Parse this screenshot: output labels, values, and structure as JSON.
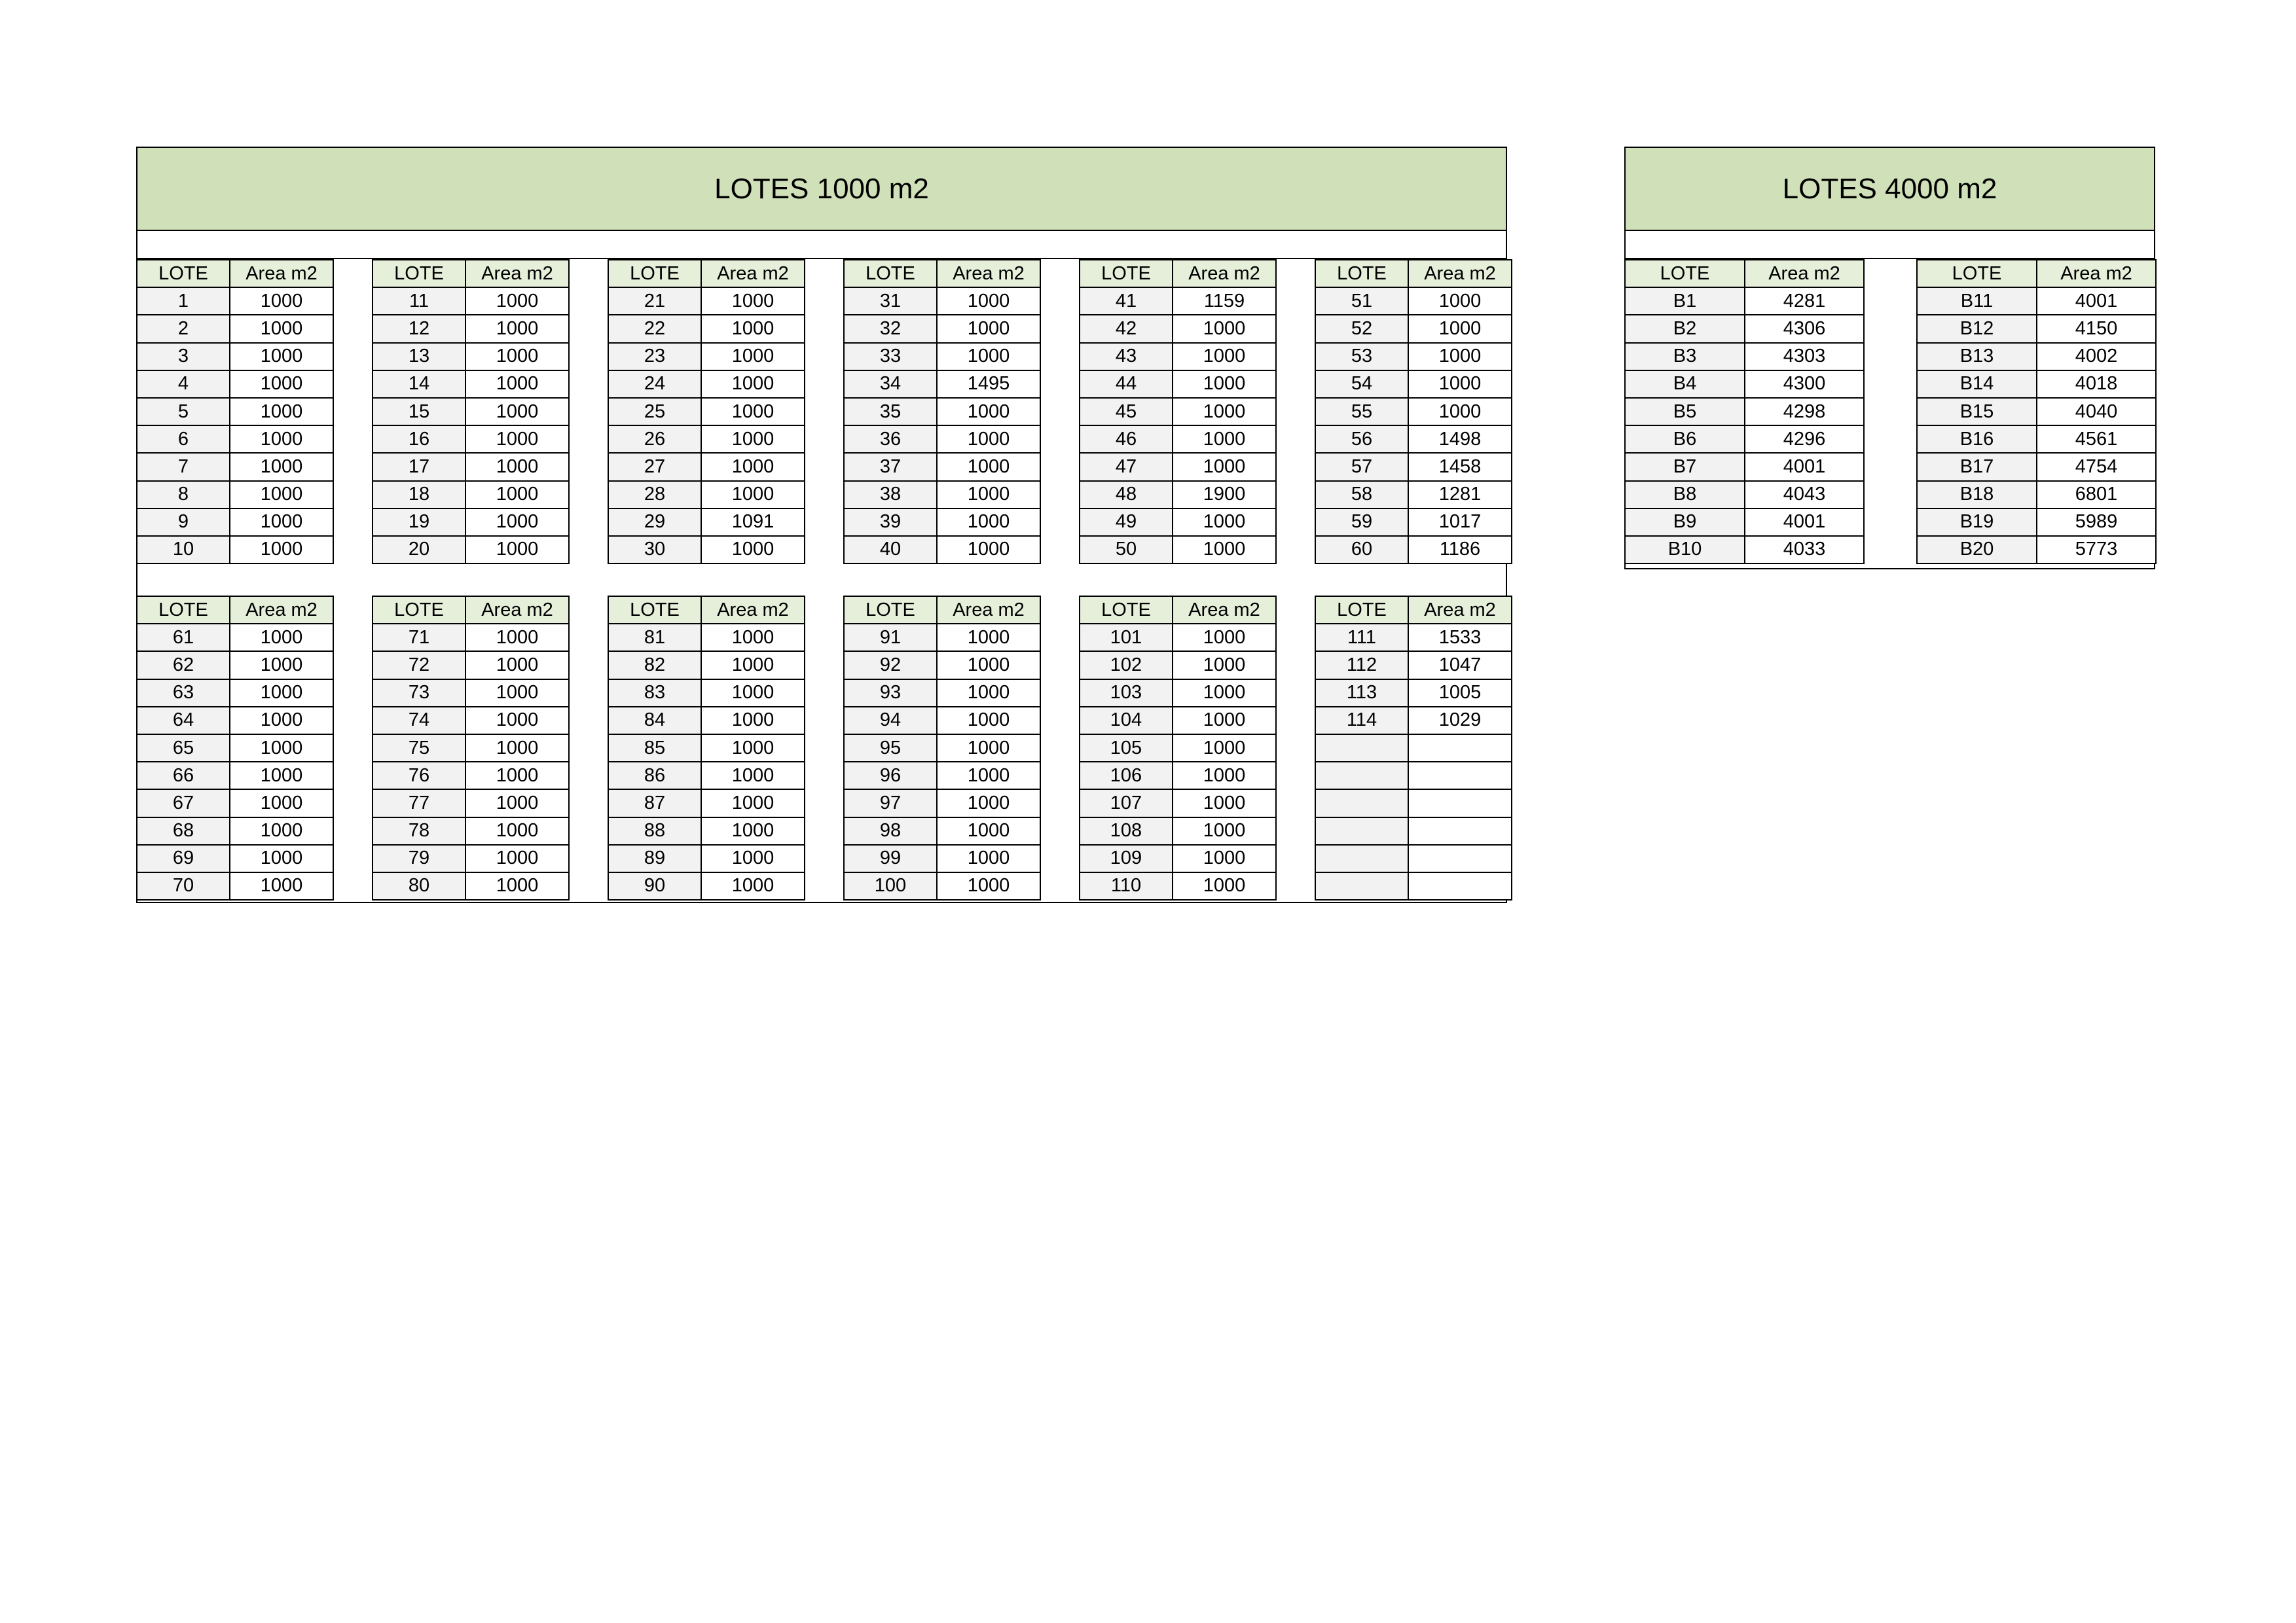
{
  "panel_1000": {
    "title": "LOTES 1000 m2",
    "col_lote": "LOTE",
    "col_area": "Area m2",
    "blocks": [
      [
        [
          "1",
          "1000"
        ],
        [
          "2",
          "1000"
        ],
        [
          "3",
          "1000"
        ],
        [
          "4",
          "1000"
        ],
        [
          "5",
          "1000"
        ],
        [
          "6",
          "1000"
        ],
        [
          "7",
          "1000"
        ],
        [
          "8",
          "1000"
        ],
        [
          "9",
          "1000"
        ],
        [
          "10",
          "1000"
        ]
      ],
      [
        [
          "11",
          "1000"
        ],
        [
          "12",
          "1000"
        ],
        [
          "13",
          "1000"
        ],
        [
          "14",
          "1000"
        ],
        [
          "15",
          "1000"
        ],
        [
          "16",
          "1000"
        ],
        [
          "17",
          "1000"
        ],
        [
          "18",
          "1000"
        ],
        [
          "19",
          "1000"
        ],
        [
          "20",
          "1000"
        ]
      ],
      [
        [
          "21",
          "1000"
        ],
        [
          "22",
          "1000"
        ],
        [
          "23",
          "1000"
        ],
        [
          "24",
          "1000"
        ],
        [
          "25",
          "1000"
        ],
        [
          "26",
          "1000"
        ],
        [
          "27",
          "1000"
        ],
        [
          "28",
          "1000"
        ],
        [
          "29",
          "1091"
        ],
        [
          "30",
          "1000"
        ]
      ],
      [
        [
          "31",
          "1000"
        ],
        [
          "32",
          "1000"
        ],
        [
          "33",
          "1000"
        ],
        [
          "34",
          "1495"
        ],
        [
          "35",
          "1000"
        ],
        [
          "36",
          "1000"
        ],
        [
          "37",
          "1000"
        ],
        [
          "38",
          "1000"
        ],
        [
          "39",
          "1000"
        ],
        [
          "40",
          "1000"
        ]
      ],
      [
        [
          "41",
          "1159"
        ],
        [
          "42",
          "1000"
        ],
        [
          "43",
          "1000"
        ],
        [
          "44",
          "1000"
        ],
        [
          "45",
          "1000"
        ],
        [
          "46",
          "1000"
        ],
        [
          "47",
          "1000"
        ],
        [
          "48",
          "1900"
        ],
        [
          "49",
          "1000"
        ],
        [
          "50",
          "1000"
        ]
      ],
      [
        [
          "51",
          "1000"
        ],
        [
          "52",
          "1000"
        ],
        [
          "53",
          "1000"
        ],
        [
          "54",
          "1000"
        ],
        [
          "55",
          "1000"
        ],
        [
          "56",
          "1498"
        ],
        [
          "57",
          "1458"
        ],
        [
          "58",
          "1281"
        ],
        [
          "59",
          "1017"
        ],
        [
          "60",
          "1186"
        ]
      ],
      [
        [
          "61",
          "1000"
        ],
        [
          "62",
          "1000"
        ],
        [
          "63",
          "1000"
        ],
        [
          "64",
          "1000"
        ],
        [
          "65",
          "1000"
        ],
        [
          "66",
          "1000"
        ],
        [
          "67",
          "1000"
        ],
        [
          "68",
          "1000"
        ],
        [
          "69",
          "1000"
        ],
        [
          "70",
          "1000"
        ]
      ],
      [
        [
          "71",
          "1000"
        ],
        [
          "72",
          "1000"
        ],
        [
          "73",
          "1000"
        ],
        [
          "74",
          "1000"
        ],
        [
          "75",
          "1000"
        ],
        [
          "76",
          "1000"
        ],
        [
          "77",
          "1000"
        ],
        [
          "78",
          "1000"
        ],
        [
          "79",
          "1000"
        ],
        [
          "80",
          "1000"
        ]
      ],
      [
        [
          "81",
          "1000"
        ],
        [
          "82",
          "1000"
        ],
        [
          "83",
          "1000"
        ],
        [
          "84",
          "1000"
        ],
        [
          "85",
          "1000"
        ],
        [
          "86",
          "1000"
        ],
        [
          "87",
          "1000"
        ],
        [
          "88",
          "1000"
        ],
        [
          "89",
          "1000"
        ],
        [
          "90",
          "1000"
        ]
      ],
      [
        [
          "91",
          "1000"
        ],
        [
          "92",
          "1000"
        ],
        [
          "93",
          "1000"
        ],
        [
          "94",
          "1000"
        ],
        [
          "95",
          "1000"
        ],
        [
          "96",
          "1000"
        ],
        [
          "97",
          "1000"
        ],
        [
          "98",
          "1000"
        ],
        [
          "99",
          "1000"
        ],
        [
          "100",
          "1000"
        ]
      ],
      [
        [
          "101",
          "1000"
        ],
        [
          "102",
          "1000"
        ],
        [
          "103",
          "1000"
        ],
        [
          "104",
          "1000"
        ],
        [
          "105",
          "1000"
        ],
        [
          "106",
          "1000"
        ],
        [
          "107",
          "1000"
        ],
        [
          "108",
          "1000"
        ],
        [
          "109",
          "1000"
        ],
        [
          "110",
          "1000"
        ]
      ],
      [
        [
          "111",
          "1533"
        ],
        [
          "112",
          "1047"
        ],
        [
          "113",
          "1005"
        ],
        [
          "114",
          "1029"
        ],
        [
          "",
          ""
        ],
        [
          "",
          ""
        ],
        [
          "",
          ""
        ],
        [
          "",
          ""
        ],
        [
          "",
          ""
        ],
        [
          "",
          ""
        ]
      ]
    ]
  },
  "panel_4000": {
    "title": "LOTES 4000 m2",
    "col_lote": "LOTE",
    "col_area": "Area m2",
    "blocks": [
      [
        [
          "B1",
          "4281"
        ],
        [
          "B2",
          "4306"
        ],
        [
          "B3",
          "4303"
        ],
        [
          "B4",
          "4300"
        ],
        [
          "B5",
          "4298"
        ],
        [
          "B6",
          "4296"
        ],
        [
          "B7",
          "4001"
        ],
        [
          "B8",
          "4043"
        ],
        [
          "B9",
          "4001"
        ],
        [
          "B10",
          "4033"
        ]
      ],
      [
        [
          "B11",
          "4001"
        ],
        [
          "B12",
          "4150"
        ],
        [
          "B13",
          "4002"
        ],
        [
          "B14",
          "4018"
        ],
        [
          "B15",
          "4040"
        ],
        [
          "B16",
          "4561"
        ],
        [
          "B17",
          "4754"
        ],
        [
          "B18",
          "6801"
        ],
        [
          "B19",
          "5989"
        ],
        [
          "B20",
          "5773"
        ]
      ]
    ]
  }
}
